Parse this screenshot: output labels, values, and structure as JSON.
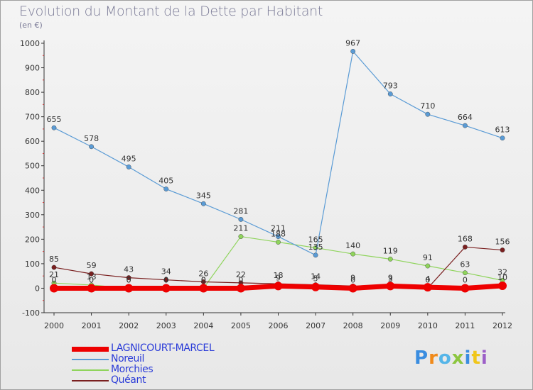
{
  "header": {
    "title": "Evolution du Montant de la Dette par Habitant",
    "subtitle": "(en €)"
  },
  "logo": {
    "text": "Proxiti",
    "colors": [
      "#3a8de0",
      "#f08a1a",
      "#55b5e8",
      "#8cc63f",
      "#3a8de0",
      "#f0c61a",
      "#9c5fc8"
    ]
  },
  "chart_data": {
    "type": "line",
    "title": "Evolution du Montant de la Dette par Habitant",
    "subtitle": "(en €)",
    "xlabel": "",
    "ylabel": "",
    "x": [
      2000,
      2001,
      2002,
      2003,
      2004,
      2005,
      2006,
      2007,
      2008,
      2009,
      2010,
      2011,
      2012
    ],
    "ylim": [
      -100,
      1000
    ],
    "yticks": [
      -100,
      0,
      100,
      200,
      300,
      400,
      500,
      600,
      700,
      800,
      900,
      1000
    ],
    "grid": false,
    "legend_position": "bottom-left",
    "series": [
      {
        "name": "LAGNICOURT-MARCEL",
        "color": "#ee0000",
        "width": 7,
        "values": [
          0,
          0,
          0,
          0,
          0,
          0,
          9,
          5,
          0,
          9,
          4,
          0,
          10
        ],
        "labels": [
          "0",
          "0",
          "0",
          "0",
          "0",
          "0",
          "9",
          "5",
          "0",
          "9",
          "4",
          "0",
          "10"
        ]
      },
      {
        "name": "Noreuil",
        "color": "#5a9bd5",
        "width": 1.2,
        "values": [
          655,
          578,
          495,
          405,
          345,
          281,
          211,
          135,
          967,
          793,
          710,
          664,
          613
        ],
        "labels": [
          "655",
          "578",
          "495",
          "405",
          "345",
          "281",
          "211",
          "135",
          "967",
          "793",
          "710",
          "664",
          "613"
        ]
      },
      {
        "name": "Morchies",
        "color": "#8fd45c",
        "width": 1.2,
        "values": [
          21,
          13,
          0,
          0,
          0,
          211,
          188,
          165,
          140,
          119,
          91,
          63,
          32
        ],
        "labels": [
          "21",
          "13",
          "0",
          "0",
          "0",
          "211",
          "188",
          "165",
          "140",
          "119",
          "91",
          "63",
          "32"
        ]
      },
      {
        "name": "Quéant",
        "color": "#7a1f1f",
        "width": 1.2,
        "values": [
          85,
          59,
          43,
          34,
          26,
          22,
          18,
          14,
          9,
          3,
          0,
          168,
          156
        ],
        "labels": [
          "85",
          "59",
          "43",
          "34",
          "26",
          "22",
          "18",
          "14",
          "9",
          "3",
          "0",
          "168",
          "156"
        ]
      }
    ]
  }
}
